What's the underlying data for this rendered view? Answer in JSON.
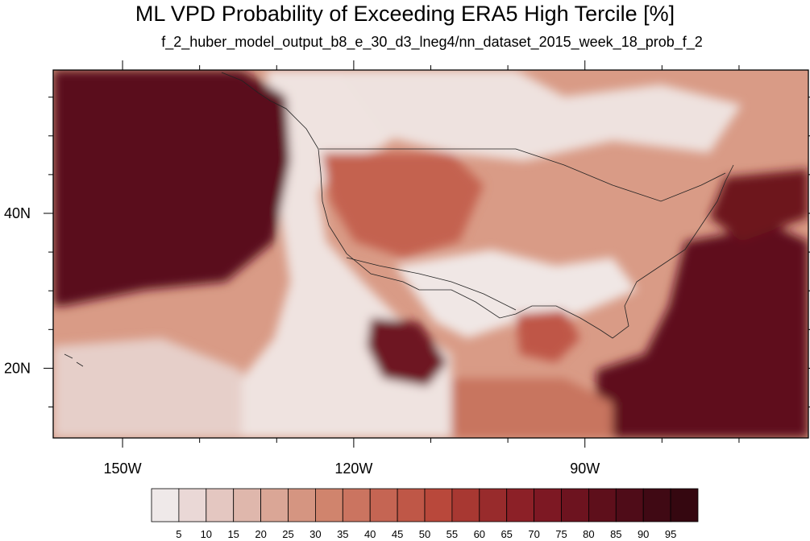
{
  "map": {
    "title": "ML VPD Probability of Exceeding ERA5 High Tercile [%]",
    "subtitle": "f_2_huber_model_output_b8_e_30_d3_lneg4/nn_dataset_2015_week_18_prob_f_2",
    "lon_ticks": [
      {
        "value": -150,
        "label": "150W"
      },
      {
        "value": -120,
        "label": "120W"
      },
      {
        "value": -90,
        "label": "90W"
      }
    ],
    "lat_ticks": [
      {
        "value": 40,
        "label": "40N"
      },
      {
        "value": 20,
        "label": "20N"
      }
    ],
    "lon_range": [
      -159,
      -61
    ],
    "lat_range": [
      11,
      58.5
    ]
  },
  "colorbar": {
    "levels": [
      "5",
      "10",
      "15",
      "20",
      "25",
      "30",
      "35",
      "40",
      "45",
      "50",
      "55",
      "60",
      "65",
      "70",
      "75",
      "80",
      "85",
      "90",
      "95"
    ],
    "colors": [
      "#efe9e9",
      "#ead8d6",
      "#e4c7c1",
      "#dfb7ac",
      "#daa696",
      "#d59581",
      "#d0846d",
      "#cb7460",
      "#c56553",
      "#bf5747",
      "#b9483b",
      "#a83832",
      "#982b2c",
      "#8c2027",
      "#7d1823",
      "#6d131f",
      "#5e0f1b",
      "#4f0c18",
      "#400914",
      "#350710"
    ]
  },
  "chart_data": {
    "type": "heatmap",
    "title": "ML VPD Probability of Exceeding ERA5 High Tercile [%]",
    "subtitle": "f_2_huber_model_output_b8_e_30_d3_lneg4/nn_dataset_2015_week_18_prob_f_2",
    "xlabel": "",
    "ylabel": "",
    "xlim": [
      -159,
      -61
    ],
    "ylim": [
      11,
      58.5
    ],
    "x_ticks": [
      "150W",
      "120W",
      "90W"
    ],
    "y_ticks": [
      "40N",
      "20N"
    ],
    "colorbar_levels": [
      5,
      10,
      15,
      20,
      25,
      30,
      35,
      40,
      45,
      50,
      55,
      60,
      65,
      70,
      75,
      80,
      85,
      90,
      95
    ],
    "units": "%"
  }
}
